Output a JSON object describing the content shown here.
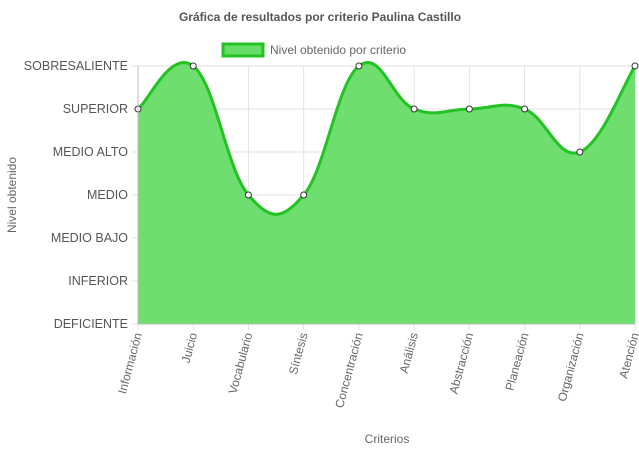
{
  "chart_data": {
    "type": "line",
    "title": "Gráfica de resultados por criterio Paulina Castillo",
    "x_label": "Criterios",
    "y_label": "Nivel obtenido",
    "categories": [
      "Información",
      "Juicio",
      "Vocabulario",
      "Síntesis",
      "Concentración",
      "Análisis",
      "Abstracción",
      "Planeación",
      "Organización",
      "Atención"
    ],
    "series": [
      {
        "name": "Nivel obtenido por criterio",
        "color": "#22c322",
        "fill": "#66dd66",
        "values": [
          5,
          6,
          3,
          3,
          6,
          5,
          5,
          5,
          4,
          6
        ]
      }
    ],
    "ylim": [
      0,
      6
    ],
    "yticks": [
      {
        "value": 0,
        "label": "DEFICIENTE"
      },
      {
        "value": 1,
        "label": "INFERIOR"
      },
      {
        "value": 2,
        "label": "MEDIO BAJO"
      },
      {
        "value": 3,
        "label": "MEDIO"
      },
      {
        "value": 4,
        "label": "MEDIO ALTO"
      },
      {
        "value": 5,
        "label": "SUPERIOR"
      },
      {
        "value": 6,
        "label": "SOBRESALIENTE"
      }
    ],
    "grid": true,
    "legend": "top"
  }
}
